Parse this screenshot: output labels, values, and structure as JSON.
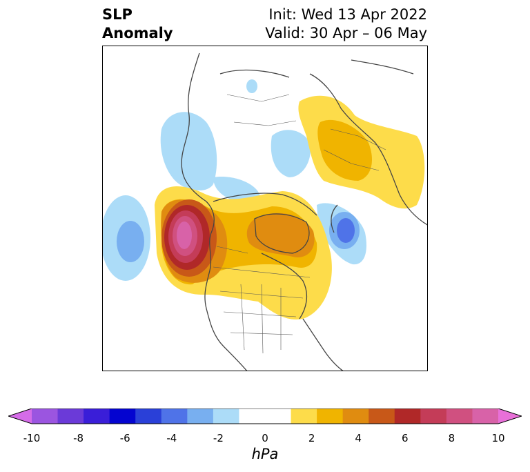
{
  "title": {
    "left_line1": "SLP",
    "left_line2": "Anomaly",
    "init": "Init: Wed 13 Apr 2022",
    "valid": "Valid: 30 Apr – 06 May"
  },
  "colorbar": {
    "label": "hPa",
    "ticks": [
      "-10",
      "-8",
      "-6",
      "-4",
      "-2",
      "0",
      "2",
      "4",
      "6",
      "8",
      "10"
    ],
    "colors": [
      "#d56ce8",
      "#9b55e0",
      "#6b3ad8",
      "#3a1ed8",
      "#0404d0",
      "#2a40d8",
      "#4f73e8",
      "#78aff0",
      "#acdcf8",
      "#ffffff",
      "#ffffff",
      "#fddc4a",
      "#f0b400",
      "#e08c10",
      "#c85818",
      "#b02828",
      "#c43c58",
      "#d05080",
      "#d862a8",
      "#e870d8"
    ]
  },
  "map": {
    "projection": "north-polar-stereographic",
    "region": "North America / Arctic",
    "anomalies": [
      {
        "feature": "positive-max-northeast-pacific",
        "value_hpa": 9
      },
      {
        "feature": "positive-canadian-arctic",
        "value_hpa": 4
      },
      {
        "feature": "positive-siberia",
        "value_hpa": 2
      },
      {
        "feature": "negative-central-pacific",
        "value_hpa": -3
      },
      {
        "feature": "negative-greenland-sea",
        "value_hpa": -5
      },
      {
        "feature": "negative-bering",
        "value_hpa": -1
      }
    ]
  }
}
